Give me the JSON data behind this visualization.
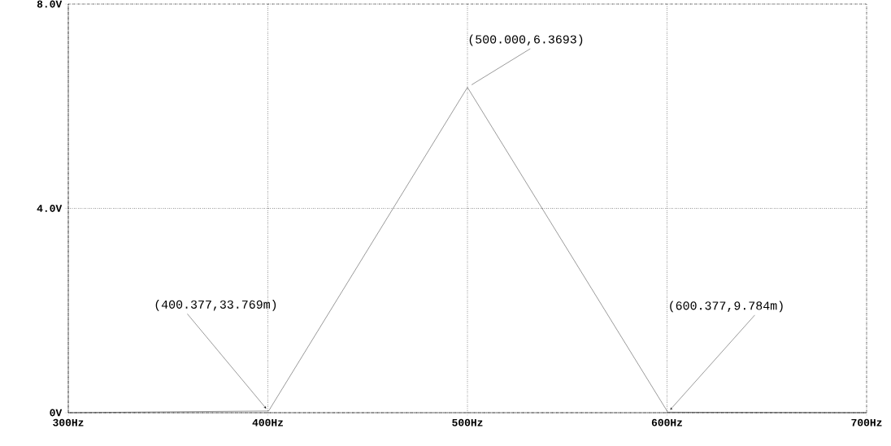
{
  "chart_data": {
    "type": "line",
    "x": [
      300,
      400.377,
      500,
      600.377,
      700
    ],
    "values": [
      0,
      0.033769,
      6.3693,
      0.009784,
      0
    ],
    "color": "#000000",
    "xlim": [
      300,
      700
    ],
    "xticks": [
      {
        "value": 300,
        "label": "300Hz"
      },
      {
        "value": 400,
        "label": "400Hz"
      },
      {
        "value": 500,
        "label": "500Hz"
      },
      {
        "value": 600,
        "label": "600Hz"
      },
      {
        "value": 700,
        "label": "700Hz"
      }
    ],
    "ylim": [
      0,
      8
    ],
    "yticks": [
      {
        "value": 0,
        "label": "0V"
      },
      {
        "value": 4,
        "label": "4.0V"
      },
      {
        "value": 8,
        "label": "8.0V"
      }
    ],
    "grid": true,
    "marker": "none",
    "line_style": "solid",
    "annotations": [
      {
        "text": "(400.377,33.769m)",
        "x": 400.377,
        "y": 0.033769
      },
      {
        "text": "(500.000,6.3693)",
        "x": 500,
        "y": 6.3693
      },
      {
        "text": "(600.377,9.784m)",
        "x": 600.377,
        "y": 0.009784
      }
    ]
  }
}
